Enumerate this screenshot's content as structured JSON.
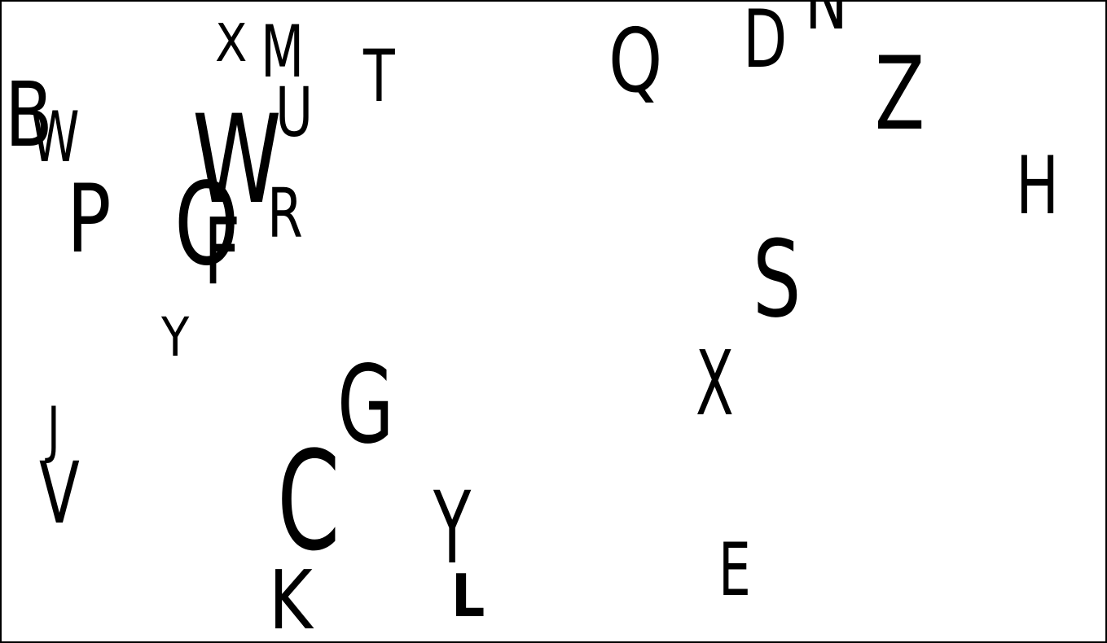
{
  "letters": {
    "x1": "X",
    "m": "M",
    "t": "T",
    "q": "Q",
    "d": "D",
    "n": "N",
    "z": "Z",
    "b": "B",
    "w1": "W",
    "u": "U",
    "w2": "W",
    "o": "O",
    "f": "F",
    "r": "R",
    "p": "P",
    "h": "H",
    "s": "S",
    "y1": "Y",
    "x2": "X",
    "g": "G",
    "j": "J",
    "v": "V",
    "c": "C",
    "y2": "Y",
    "e": "E",
    "k": "K",
    "l": "L"
  },
  "colors": {
    "ink": "#000000",
    "background": "#ffffff"
  }
}
